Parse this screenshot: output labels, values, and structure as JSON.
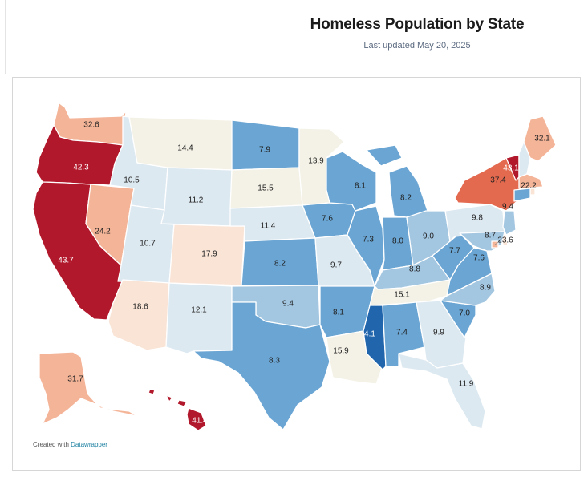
{
  "header": {
    "title": "Homeless Population by State",
    "subtitle": "Last updated May 20, 2025"
  },
  "credit": {
    "prefix": "Created with",
    "link": "Datawrapper"
  },
  "colors": {
    "very_low": "#2166ac",
    "low": "#6aa5d3",
    "lowish": "#a3c6e1",
    "light": "#dde9f1",
    "neutral": "#f4f2e6",
    "warmish": "#f9e4d6",
    "warm": "#f4b498",
    "high": "#e46a4f",
    "very_high": "#b2182b"
  },
  "states": [
    {
      "abbr": "WA",
      "value": "32.6"
    },
    {
      "abbr": "OR",
      "value": "42.3"
    },
    {
      "abbr": "CA",
      "value": "43.7"
    },
    {
      "abbr": "NV",
      "value": "24.2"
    },
    {
      "abbr": "ID",
      "value": "10.5"
    },
    {
      "abbr": "MT",
      "value": "14.4"
    },
    {
      "abbr": "WY",
      "value": "11.2"
    },
    {
      "abbr": "UT",
      "value": "10.7"
    },
    {
      "abbr": "CO",
      "value": "17.9"
    },
    {
      "abbr": "AZ",
      "value": "18.6"
    },
    {
      "abbr": "NM",
      "value": "12.1"
    },
    {
      "abbr": "ND",
      "value": "7.9"
    },
    {
      "abbr": "SD",
      "value": "15.5"
    },
    {
      "abbr": "NE",
      "value": "11.4"
    },
    {
      "abbr": "KS",
      "value": "8.2"
    },
    {
      "abbr": "OK",
      "value": "9.4"
    },
    {
      "abbr": "TX",
      "value": "8.3"
    },
    {
      "abbr": "MN",
      "value": "13.9"
    },
    {
      "abbr": "IA",
      "value": "7.6"
    },
    {
      "abbr": "MO",
      "value": "9.7"
    },
    {
      "abbr": "AR",
      "value": "8.1"
    },
    {
      "abbr": "LA",
      "value": "15.9"
    },
    {
      "abbr": "WI",
      "value": "8.1"
    },
    {
      "abbr": "IL",
      "value": "7.3"
    },
    {
      "abbr": "MI",
      "value": "8.2"
    },
    {
      "abbr": "IN",
      "value": "8.0"
    },
    {
      "abbr": "OH",
      "value": "9.0"
    },
    {
      "abbr": "KY",
      "value": "8.8"
    },
    {
      "abbr": "TN",
      "value": "15.1"
    },
    {
      "abbr": "MS",
      "value": "4.1"
    },
    {
      "abbr": "AL",
      "value": "7.4"
    },
    {
      "abbr": "GA",
      "value": "9.9"
    },
    {
      "abbr": "FL",
      "value": "11.9"
    },
    {
      "abbr": "SC",
      "value": "7.0"
    },
    {
      "abbr": "NC",
      "value": "8.9"
    },
    {
      "abbr": "VA",
      "value": "7.6"
    },
    {
      "abbr": "WV",
      "value": "7.7"
    },
    {
      "abbr": "PA",
      "value": "9.8"
    },
    {
      "abbr": "NY",
      "value": "37.4"
    },
    {
      "abbr": "VT",
      "value": "43.1"
    },
    {
      "abbr": "NH",
      "value": ""
    },
    {
      "abbr": "ME",
      "value": "32.1"
    },
    {
      "abbr": "MA",
      "value": "22.2"
    },
    {
      "abbr": "RI",
      "value": ""
    },
    {
      "abbr": "CT",
      "value": ""
    },
    {
      "abbr": "NJ",
      "value": "9.4"
    },
    {
      "abbr": "DE",
      "value": ""
    },
    {
      "abbr": "MD",
      "value": "8.7"
    },
    {
      "abbr": "DC",
      "value": "23.6"
    },
    {
      "abbr": "AK",
      "value": "31.7"
    },
    {
      "abbr": "HI",
      "value": "41.4"
    }
  ]
}
